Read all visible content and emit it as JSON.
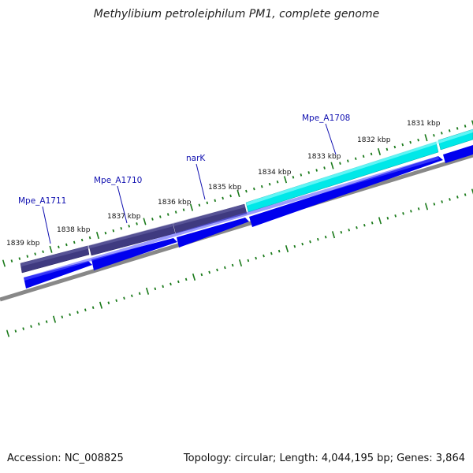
{
  "title": "Methylibium petroleiphilum PM1, complete genome",
  "footer": {
    "accession": "Accession: NC_008825",
    "summary": "Topology: circular; Length: 4,044,195 bp; Genes: 3,864"
  },
  "colors": {
    "backbone": "#888888",
    "tick": "#1a7a1a",
    "cds": "#0000ee",
    "gene_dark": "#3f3a80",
    "gene_cyan": "#00e8e8",
    "label": "#1010b0"
  },
  "scale_ticks": [
    {
      "label": "1831 kbp"
    },
    {
      "label": "1832 kbp"
    },
    {
      "label": "1833 kbp"
    },
    {
      "label": "1834 kbp"
    },
    {
      "label": "1835 kbp"
    },
    {
      "label": "1836 kbp"
    },
    {
      "label": "1837 kbp"
    },
    {
      "label": "1838 kbp"
    },
    {
      "label": "1839 kbp"
    }
  ],
  "gene_labels": [
    {
      "name": "Mpe_A1708"
    },
    {
      "name": "narK"
    },
    {
      "name": "Mpe_A1710"
    },
    {
      "name": "Mpe_A1711"
    }
  ]
}
